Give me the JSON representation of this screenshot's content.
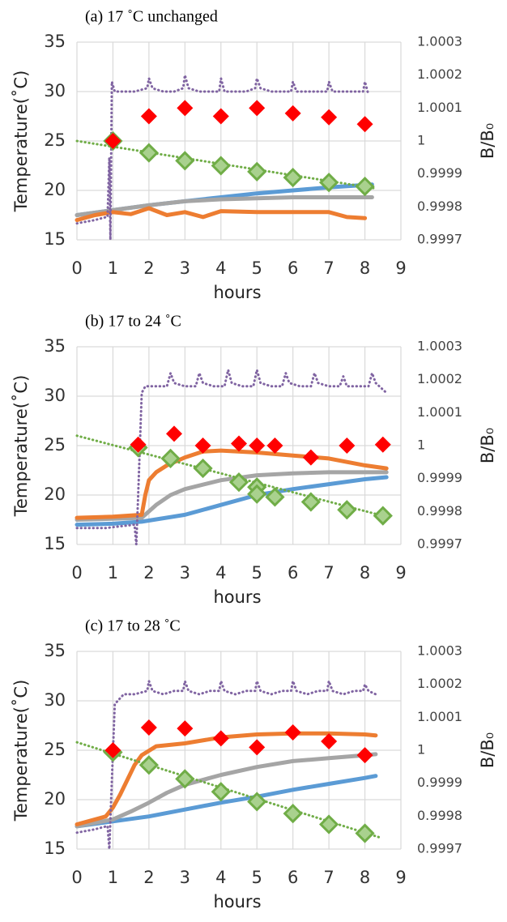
{
  "chart_data": [
    {
      "type": "scatter",
      "title": "(a)  17 ˚C unchanged",
      "x_label": "hours",
      "y_label": "Temperature(˚C)",
      "y2_label": "B/B₀",
      "xlim": [
        0,
        9
      ],
      "xticks": [
        0,
        1,
        2,
        3,
        4,
        5,
        6,
        7,
        8,
        9
      ],
      "ylim": [
        15,
        35
      ],
      "yticks": [
        15,
        20,
        25,
        30,
        35
      ],
      "y2lim": [
        0.9997,
        1.0003
      ],
      "y2ticks": [
        0.9997,
        0.9998,
        0.9999,
        1,
        1.0001,
        1.0002,
        1.0003
      ],
      "grid": true,
      "series": [
        {
          "color": "#5b9bd5",
          "mode": "line",
          "x": [
            0,
            1,
            2,
            3,
            4,
            5,
            6,
            7,
            8.2
          ],
          "values": [
            17.5,
            18,
            18.5,
            18.9,
            19.3,
            19.7,
            20,
            20.3,
            20.6
          ]
        },
        {
          "color": "#a5a5a5",
          "mode": "line",
          "x": [
            0,
            1,
            2,
            3,
            4,
            5,
            6,
            7,
            8.2
          ],
          "values": [
            17.5,
            18,
            18.5,
            18.9,
            19.1,
            19.2,
            19.3,
            19.3,
            19.3
          ]
        },
        {
          "color": "#ed7d31",
          "mode": "line",
          "x": [
            0,
            0.5,
            1,
            1.5,
            2,
            2.5,
            3,
            3.5,
            4,
            5,
            6,
            7,
            7.5,
            8
          ],
          "values": [
            17,
            17.5,
            17.8,
            17.6,
            18.2,
            17.5,
            17.8,
            17.3,
            17.9,
            17.8,
            17.8,
            17.8,
            17.3,
            17.2
          ]
        },
        {
          "color": "#70ad47",
          "mode": "dotted",
          "axis": "y2",
          "x": [
            0,
            8.3
          ],
          "values": [
            1,
            0.999856
          ]
        },
        {
          "color": "#8064a2",
          "mode": "dotted",
          "axis": "y2",
          "x": [
            0,
            0.5,
            0.85,
            0.9,
            0.93,
            0.97,
            1.05,
            1.3,
            1.6,
            1.95,
            2.0,
            2.1,
            2.4,
            2.7,
            2.95,
            3.0,
            3.1,
            3.4,
            3.7,
            3.95,
            4.0,
            4.1,
            4.4,
            4.7,
            4.95,
            5.0,
            5.1,
            5.4,
            5.7,
            5.95,
            6.0,
            6.1,
            6.4,
            6.7,
            6.95,
            7.0,
            7.1,
            7.4,
            7.7,
            7.95,
            8.0,
            8.1
          ],
          "values": [
            0.99975,
            0.99976,
            0.99977,
            0.99995,
            0.9997,
            1.00018,
            1.00015,
            1.00015,
            1.00015,
            1.00016,
            1.00019,
            1.00016,
            1.00015,
            1.00015,
            1.00016,
            1.0002,
            1.00016,
            1.00015,
            1.00015,
            1.00015,
            1.00019,
            1.00015,
            1.00015,
            1.00015,
            1.00016,
            1.00019,
            1.00016,
            1.00015,
            1.00015,
            1.00015,
            1.00018,
            1.00015,
            1.00015,
            1.00015,
            1.00015,
            1.00018,
            1.00015,
            1.00015,
            1.00015,
            1.00015,
            1.00018,
            1.00014
          ]
        },
        {
          "color": "#70ad47",
          "mode": "marker",
          "marker": "diamond",
          "axis": "y2",
          "x": [
            1,
            2,
            3,
            4,
            5,
            6,
            7,
            8
          ],
          "values": [
            1,
            0.999964,
            0.99994,
            0.999925,
            0.999907,
            0.999889,
            0.999874,
            0.999862
          ]
        },
        {
          "color": "#ff0000",
          "mode": "marker",
          "marker": "diamond",
          "axis": "y2",
          "x": [
            1,
            2,
            3,
            4,
            5,
            6,
            7,
            8
          ],
          "values": [
            1,
            1.000075,
            1.0001,
            1.000075,
            1.0001,
            1.000084,
            1.000072,
            1.000051
          ]
        }
      ]
    },
    {
      "type": "scatter",
      "title": "(b)  17 to 24 ˚C",
      "x_label": "hours",
      "y_label": "Temperature(˚C)",
      "y2_label": "B/B₀",
      "xlim": [
        0,
        9
      ],
      "xticks": [
        0,
        1,
        2,
        3,
        4,
        5,
        6,
        7,
        8,
        9
      ],
      "ylim": [
        15,
        35
      ],
      "yticks": [
        15,
        20,
        25,
        30,
        35
      ],
      "y2lim": [
        0.9997,
        1.0003
      ],
      "y2ticks": [
        0.9997,
        0.9998,
        0.9999,
        1,
        1.0001,
        1.0002,
        1.0003
      ],
      "grid": true,
      "series": [
        {
          "color": "#5b9bd5",
          "mode": "line",
          "x": [
            0,
            1,
            1.8,
            3,
            4,
            5,
            6,
            7,
            8,
            8.6
          ],
          "values": [
            17,
            17.1,
            17.3,
            18,
            19,
            20,
            20.6,
            21.1,
            21.6,
            21.8
          ]
        },
        {
          "color": "#a5a5a5",
          "mode": "line",
          "x": [
            0,
            1,
            1.8,
            2.2,
            2.6,
            3,
            4,
            5,
            6,
            7,
            8,
            8.6
          ],
          "values": [
            17.5,
            17.6,
            17.7,
            19,
            20,
            20.6,
            21.5,
            22,
            22.2,
            22.3,
            22.3,
            22.3
          ]
        },
        {
          "color": "#ed7d31",
          "mode": "line",
          "x": [
            0,
            1,
            1.8,
            1.9,
            2,
            2.2,
            2.5,
            3,
            3.5,
            4,
            5,
            6,
            7,
            8,
            8.6
          ],
          "values": [
            17.7,
            17.8,
            18,
            20,
            21.5,
            22.3,
            23,
            23.8,
            24.4,
            24.5,
            24.3,
            24,
            23.7,
            23,
            22.7
          ]
        },
        {
          "color": "#70ad47",
          "mode": "dotted",
          "axis": "y2",
          "x": [
            0,
            8.6
          ],
          "values": [
            1.00003,
            0.999784
          ]
        },
        {
          "color": "#8064a2",
          "mode": "dotted",
          "axis": "y2",
          "x": [
            0,
            0.8,
            1.6,
            1.65,
            1.7,
            1.8,
            1.9,
            2.2,
            2.5,
            2.6,
            2.7,
            3.0,
            3.3,
            3.4,
            3.5,
            3.8,
            4.1,
            4.2,
            4.3,
            4.6,
            4.9,
            5.0,
            5.1,
            5.4,
            5.7,
            5.8,
            5.9,
            6.2,
            6.5,
            6.6,
            6.7,
            7.0,
            7.3,
            7.4,
            7.5,
            7.8,
            8.1,
            8.2,
            8.3,
            8.5,
            8.6
          ],
          "values": [
            0.99975,
            0.99975,
            0.99976,
            0.9997,
            0.99985,
            1.00016,
            1.00018,
            1.00018,
            1.00018,
            1.00022,
            1.00019,
            1.00018,
            1.00018,
            1.00022,
            1.00019,
            1.00018,
            1.00018,
            1.00023,
            1.00019,
            1.00018,
            1.00018,
            1.00023,
            1.00019,
            1.00018,
            1.00018,
            1.00022,
            1.00019,
            1.00018,
            1.00018,
            1.00022,
            1.00019,
            1.00018,
            1.00018,
            1.00021,
            1.00018,
            1.00018,
            1.00018,
            1.00022,
            1.00019,
            1.00017,
            1.00016
          ]
        },
        {
          "color": "#70ad47",
          "mode": "marker",
          "marker": "diamond",
          "axis": "y2",
          "x": [
            1.7,
            2.6,
            3.5,
            4.5,
            5,
            5,
            5.5,
            6.5,
            7.5,
            8.5
          ],
          "values": [
            0.999994,
            0.999961,
            0.999931,
            0.999889,
            0.999874,
            0.999853,
            0.999844,
            0.999829,
            0.999805,
            0.999787
          ]
        },
        {
          "color": "#ff0000",
          "mode": "marker",
          "marker": "diamond",
          "axis": "y2",
          "x": [
            1.7,
            2.7,
            3.5,
            4.5,
            5,
            5.5,
            6.5,
            7.5,
            8.5
          ],
          "values": [
            1.000003,
            1.000036,
            1,
            1.000006,
            1,
            1,
            0.999964,
            1,
            1.000003
          ]
        }
      ]
    },
    {
      "type": "scatter",
      "title": "(c)  17 to 28 ˚C",
      "x_label": "hours",
      "y_label": "Temperature(˚C)",
      "y2_label": "B/B₀",
      "xlim": [
        0,
        9
      ],
      "xticks": [
        0,
        1,
        2,
        3,
        4,
        5,
        6,
        7,
        8,
        9
      ],
      "ylim": [
        15,
        35
      ],
      "yticks": [
        15,
        20,
        25,
        30,
        35
      ],
      "y2lim": [
        0.9997,
        1.0003
      ],
      "y2ticks": [
        0.9997,
        0.9998,
        0.9999,
        1,
        1.0001,
        1.0002,
        1.0003
      ],
      "grid": true,
      "series": [
        {
          "color": "#5b9bd5",
          "mode": "line",
          "x": [
            0,
            1,
            2,
            3,
            4,
            5,
            6,
            7,
            8,
            8.3
          ],
          "values": [
            17.3,
            17.8,
            18.3,
            19,
            19.7,
            20.3,
            21,
            21.6,
            22.2,
            22.4
          ]
        },
        {
          "color": "#a5a5a5",
          "mode": "line",
          "x": [
            0,
            1,
            1.5,
            2,
            2.5,
            3,
            4,
            5,
            6,
            7,
            8,
            8.3
          ],
          "values": [
            17.3,
            18,
            18.8,
            19.7,
            20.7,
            21.5,
            22.5,
            23.3,
            23.9,
            24.2,
            24.5,
            24.6
          ]
        },
        {
          "color": "#ed7d31",
          "mode": "line",
          "x": [
            0,
            0.8,
            1,
            1.2,
            1.4,
            1.6,
            1.8,
            2.2,
            3,
            4,
            5,
            6,
            7,
            8,
            8.3
          ],
          "values": [
            17.5,
            18.3,
            19.2,
            20.5,
            22,
            23.5,
            24.5,
            25.4,
            25.7,
            26.3,
            26.6,
            26.7,
            26.7,
            26.6,
            26.5
          ]
        },
        {
          "color": "#70ad47",
          "mode": "dotted",
          "axis": "y2",
          "x": [
            0,
            8.4
          ],
          "values": [
            1.000024,
            0.999736
          ]
        },
        {
          "color": "#8064a2",
          "mode": "dotted",
          "axis": "y2",
          "x": [
            0,
            0.5,
            0.85,
            0.9,
            0.95,
            1.05,
            1.3,
            1.6,
            1.95,
            2.0,
            2.1,
            2.4,
            2.7,
            2.95,
            3.0,
            3.1,
            3.4,
            3.7,
            3.95,
            4.0,
            4.1,
            4.4,
            4.7,
            4.95,
            5.0,
            5.1,
            5.4,
            5.7,
            5.95,
            6.0,
            6.1,
            6.4,
            6.7,
            6.95,
            7.0,
            7.1,
            7.4,
            7.7,
            7.95,
            8.0,
            8.1,
            8.3
          ],
          "values": [
            0.99975,
            0.99976,
            0.99977,
            0.9997,
            0.99985,
            1.00014,
            1.00017,
            1.00017,
            1.00018,
            1.00021,
            1.00018,
            1.00017,
            1.00018,
            1.00018,
            1.00021,
            1.00018,
            1.00017,
            1.00018,
            1.00018,
            1.00021,
            1.00018,
            1.00017,
            1.00018,
            1.00018,
            1.00021,
            1.00018,
            1.00017,
            1.00018,
            1.00018,
            1.00021,
            1.00018,
            1.00017,
            1.00018,
            1.00018,
            1.00021,
            1.00018,
            1.00017,
            1.00018,
            1.00018,
            1.0002,
            1.00018,
            1.00017
          ]
        },
        {
          "color": "#70ad47",
          "mode": "marker",
          "marker": "diamond",
          "axis": "y2",
          "x": [
            1,
            2,
            3,
            4,
            5,
            6,
            7,
            8
          ],
          "values": [
            0.999994,
            0.999955,
            0.999913,
            0.999874,
            0.999844,
            0.999808,
            0.999775,
            0.999748
          ]
        },
        {
          "color": "#ff0000",
          "mode": "marker",
          "marker": "diamond",
          "axis": "y2",
          "x": [
            1,
            2,
            3,
            4,
            5,
            6,
            7,
            8
          ],
          "values": [
            1,
            1.000069,
            1.000066,
            1.000036,
            1.000009,
            1.000054,
            1.000027,
            0.999985
          ]
        }
      ]
    }
  ]
}
